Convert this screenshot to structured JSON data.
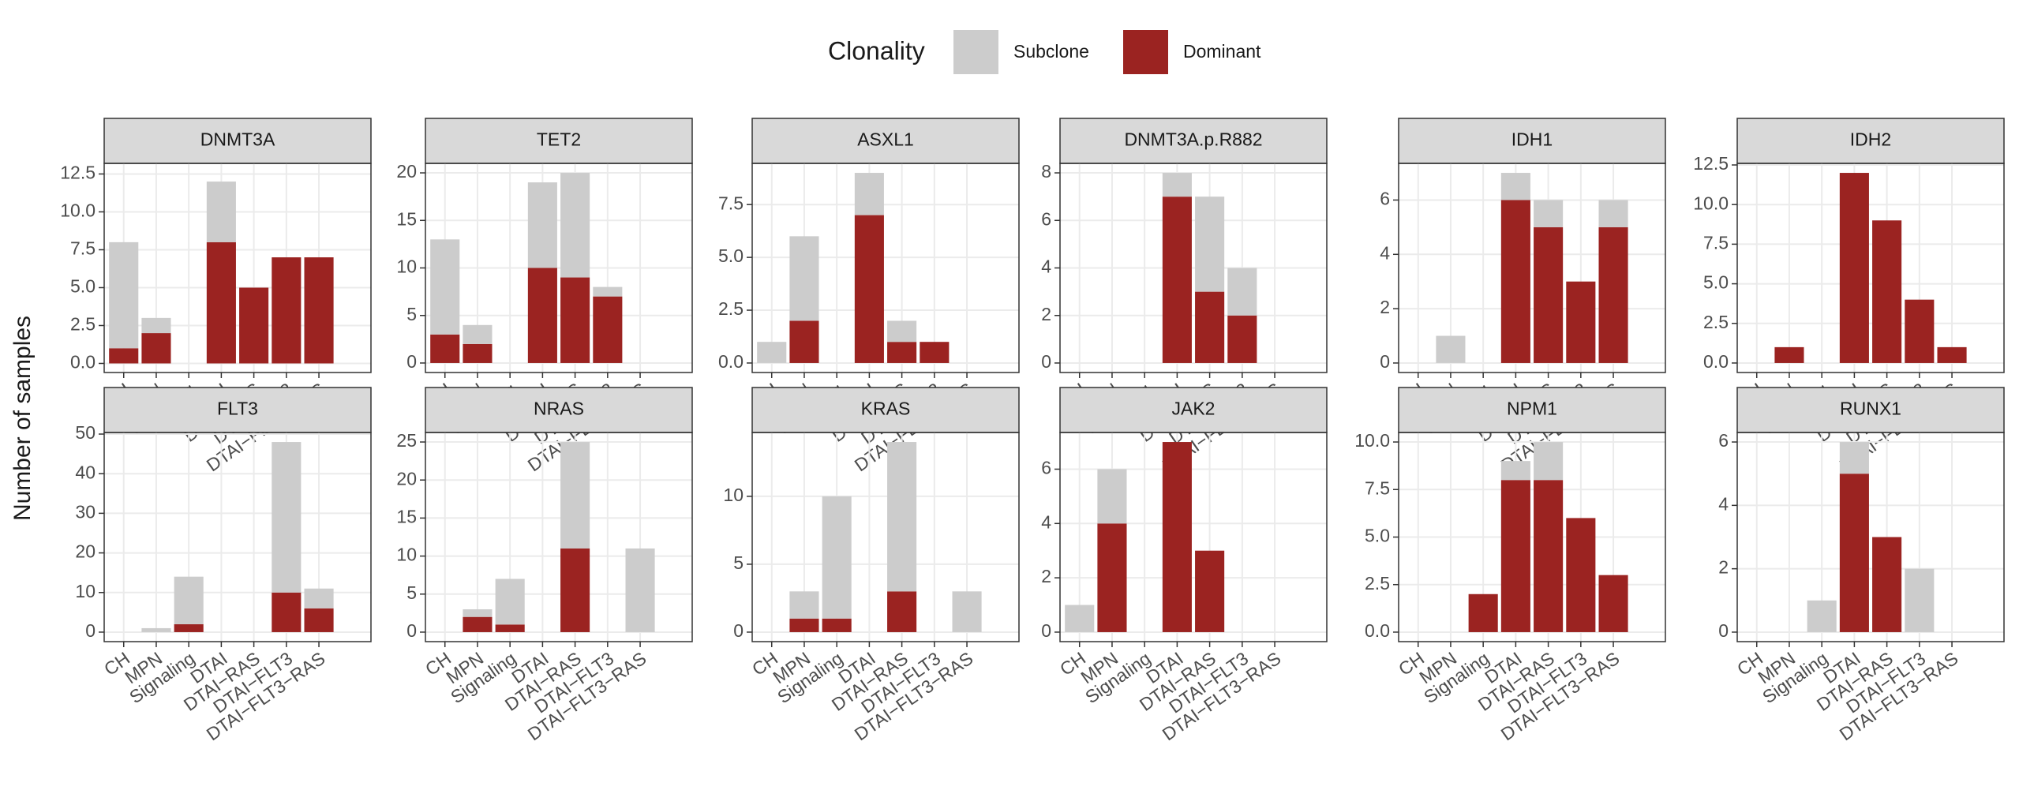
{
  "y_label": "Number of samples",
  "legend_title": "Clonality",
  "chart_data": [
    {
      "type": "bar",
      "title": "DNMT3A",
      "categories": [
        "CH",
        "MPN",
        "Signaling",
        "DTAI",
        "DTAI−RAS",
        "DTAI−FLT3",
        "DTAI−FLT3−RAS"
      ],
      "series": [
        {
          "name": "Subclone",
          "color": "#cccccc",
          "values": [
            7,
            1,
            0,
            4,
            0,
            0,
            0
          ]
        },
        {
          "name": "Dominant",
          "color": "#9b2321",
          "values": [
            1,
            2,
            0,
            8,
            5,
            7,
            7
          ]
        }
      ],
      "ylim": [
        -0.6,
        13.2
      ],
      "yticks": [
        {
          "value": 0,
          "label": "0.0"
        },
        2.5,
        {
          "value": 5,
          "label": "5.0"
        },
        7.5,
        {
          "value": 10,
          "label": "10.0"
        },
        12.5
      ],
      "grid": true
    },
    {
      "type": "bar",
      "title": "TET2",
      "categories": [
        "CH",
        "MPN",
        "Signaling",
        "DTAI",
        "DTAI−RAS",
        "DTAI−FLT3",
        "DTAI−FLT3−RAS"
      ],
      "series": [
        {
          "name": "Subclone",
          "color": "#cccccc",
          "values": [
            10,
            2,
            0,
            9,
            11,
            1,
            0
          ]
        },
        {
          "name": "Dominant",
          "color": "#9b2321",
          "values": [
            3,
            2,
            0,
            10,
            9,
            7,
            0
          ]
        }
      ],
      "ylim": [
        -1,
        21
      ],
      "yticks": [
        0,
        5,
        10,
        15,
        20
      ],
      "grid": true
    },
    {
      "type": "bar",
      "title": "ASXL1",
      "categories": [
        "CH",
        "MPN",
        "Signaling",
        "DTAI",
        "DTAI−RAS",
        "DTAI−FLT3",
        "DTAI−FLT3−RAS"
      ],
      "series": [
        {
          "name": "Subclone",
          "color": "#cccccc",
          "values": [
            1,
            4,
            0,
            2,
            1,
            0,
            0
          ]
        },
        {
          "name": "Dominant",
          "color": "#9b2321",
          "values": [
            0,
            2,
            0,
            7,
            1,
            1,
            0
          ]
        }
      ],
      "ylim": [
        -0.45,
        9.45
      ],
      "yticks": [
        {
          "value": 0,
          "label": "0.0"
        },
        2.5,
        {
          "value": 5,
          "label": "5.0"
        },
        7.5
      ],
      "grid": true
    },
    {
      "type": "bar",
      "title": "DNMT3A.p.R882",
      "categories": [
        "CH",
        "MPN",
        "Signaling",
        "DTAI",
        "DTAI−RAS",
        "DTAI−FLT3",
        "DTAI−FLT3−RAS"
      ],
      "series": [
        {
          "name": "Subclone",
          "color": "#cccccc",
          "values": [
            0,
            0,
            0,
            1,
            4,
            2,
            0
          ]
        },
        {
          "name": "Dominant",
          "color": "#9b2321",
          "values": [
            0,
            0,
            0,
            7,
            3,
            2,
            0
          ]
        }
      ],
      "ylim": [
        -0.4,
        8.4
      ],
      "yticks": [
        0,
        2,
        4,
        6,
        8
      ],
      "grid": true
    },
    {
      "type": "bar",
      "title": "IDH1",
      "categories": [
        "CH",
        "MPN",
        "Signaling",
        "DTAI",
        "DTAI−RAS",
        "DTAI−FLT3",
        "DTAI−FLT3−RAS"
      ],
      "series": [
        {
          "name": "Subclone",
          "color": "#cccccc",
          "values": [
            0,
            1,
            0,
            1,
            1,
            0,
            1
          ]
        },
        {
          "name": "Dominant",
          "color": "#9b2321",
          "values": [
            0,
            0,
            0,
            6,
            5,
            3,
            5
          ]
        }
      ],
      "ylim": [
        -0.35,
        7.35
      ],
      "yticks": [
        0,
        2,
        4,
        6
      ],
      "grid": true
    },
    {
      "type": "bar",
      "title": "IDH2",
      "categories": [
        "CH",
        "MPN",
        "Signaling",
        "DTAI",
        "DTAI−RAS",
        "DTAI−FLT3",
        "DTAI−FLT3−RAS"
      ],
      "series": [
        {
          "name": "Subclone",
          "color": "#cccccc",
          "values": [
            0,
            0,
            0,
            0,
            0,
            0,
            0
          ]
        },
        {
          "name": "Dominant",
          "color": "#9b2321",
          "values": [
            0,
            1,
            0,
            12,
            9,
            4,
            1
          ]
        }
      ],
      "ylim": [
        -0.6,
        12.6
      ],
      "yticks": [
        {
          "value": 0,
          "label": "0.0"
        },
        2.5,
        {
          "value": 5,
          "label": "5.0"
        },
        7.5,
        {
          "value": 10,
          "label": "10.0"
        },
        12.5
      ],
      "grid": true
    },
    {
      "type": "bar",
      "title": "FLT3",
      "categories": [
        "CH",
        "MPN",
        "Signaling",
        "DTAI",
        "DTAI−RAS",
        "DTAI−FLT3",
        "DTAI−FLT3−RAS"
      ],
      "series": [
        {
          "name": "Subclone",
          "color": "#cccccc",
          "values": [
            0,
            1,
            12,
            0,
            0,
            38,
            5
          ]
        },
        {
          "name": "Dominant",
          "color": "#9b2321",
          "values": [
            0,
            0,
            2,
            0,
            0,
            10,
            6
          ]
        }
      ],
      "ylim": [
        -2.4,
        50.4
      ],
      "yticks": [
        0,
        10,
        20,
        30,
        40,
        50
      ],
      "grid": true
    },
    {
      "type": "bar",
      "title": "NRAS",
      "categories": [
        "CH",
        "MPN",
        "Signaling",
        "DTAI",
        "DTAI−RAS",
        "DTAI−FLT3",
        "DTAI−FLT3−RAS"
      ],
      "series": [
        {
          "name": "Subclone",
          "color": "#cccccc",
          "values": [
            0,
            1,
            6,
            0,
            14,
            0,
            11
          ]
        },
        {
          "name": "Dominant",
          "color": "#9b2321",
          "values": [
            0,
            2,
            1,
            0,
            11,
            0,
            0
          ]
        }
      ],
      "ylim": [
        -1.25,
        26.25
      ],
      "yticks": [
        0,
        5,
        10,
        15,
        20,
        25
      ],
      "grid": true
    },
    {
      "type": "bar",
      "title": "KRAS",
      "categories": [
        "CH",
        "MPN",
        "Signaling",
        "DTAI",
        "DTAI−RAS",
        "DTAI−FLT3",
        "DTAI−FLT3−RAS"
      ],
      "series": [
        {
          "name": "Subclone",
          "color": "#cccccc",
          "values": [
            0,
            2,
            9,
            0,
            11,
            0,
            3
          ]
        },
        {
          "name": "Dominant",
          "color": "#9b2321",
          "values": [
            0,
            1,
            1,
            0,
            3,
            0,
            0
          ]
        }
      ],
      "ylim": [
        -0.7,
        14.7
      ],
      "yticks": [
        0,
        5,
        10
      ],
      "grid": true
    },
    {
      "type": "bar",
      "title": "JAK2",
      "categories": [
        "CH",
        "MPN",
        "Signaling",
        "DTAI",
        "DTAI−RAS",
        "DTAI−FLT3",
        "DTAI−FLT3−RAS"
      ],
      "series": [
        {
          "name": "Subclone",
          "color": "#cccccc",
          "values": [
            1,
            2,
            0,
            0,
            0,
            0,
            0
          ]
        },
        {
          "name": "Dominant",
          "color": "#9b2321",
          "values": [
            0,
            4,
            0,
            7,
            3,
            0,
            0
          ]
        }
      ],
      "ylim": [
        -0.35,
        7.35
      ],
      "yticks": [
        0,
        2,
        4,
        6
      ],
      "grid": true
    },
    {
      "type": "bar",
      "title": "NPM1",
      "categories": [
        "CH",
        "MPN",
        "Signaling",
        "DTAI",
        "DTAI−RAS",
        "DTAI−FLT3",
        "DTAI−FLT3−RAS"
      ],
      "series": [
        {
          "name": "Subclone",
          "color": "#cccccc",
          "values": [
            0,
            0,
            0,
            1,
            2,
            0,
            0
          ]
        },
        {
          "name": "Dominant",
          "color": "#9b2321",
          "values": [
            0,
            0,
            2,
            8,
            8,
            6,
            3
          ]
        }
      ],
      "ylim": [
        -0.5,
        10.5
      ],
      "yticks": [
        {
          "value": 0,
          "label": "0.0"
        },
        2.5,
        {
          "value": 5,
          "label": "5.0"
        },
        7.5,
        {
          "value": 10,
          "label": "10.0"
        }
      ],
      "grid": true
    },
    {
      "type": "bar",
      "title": "RUNX1",
      "categories": [
        "CH",
        "MPN",
        "Signaling",
        "DTAI",
        "DTAI−RAS",
        "DTAI−FLT3",
        "DTAI−FLT3−RAS"
      ],
      "series": [
        {
          "name": "Subclone",
          "color": "#cccccc",
          "values": [
            0,
            0,
            1,
            1,
            0,
            2,
            0
          ]
        },
        {
          "name": "Dominant",
          "color": "#9b2321",
          "values": [
            0,
            0,
            0,
            5,
            3,
            0,
            0
          ]
        }
      ],
      "ylim": [
        -0.3,
        6.3
      ],
      "yticks": [
        0,
        2,
        4,
        6
      ],
      "grid": true
    }
  ]
}
